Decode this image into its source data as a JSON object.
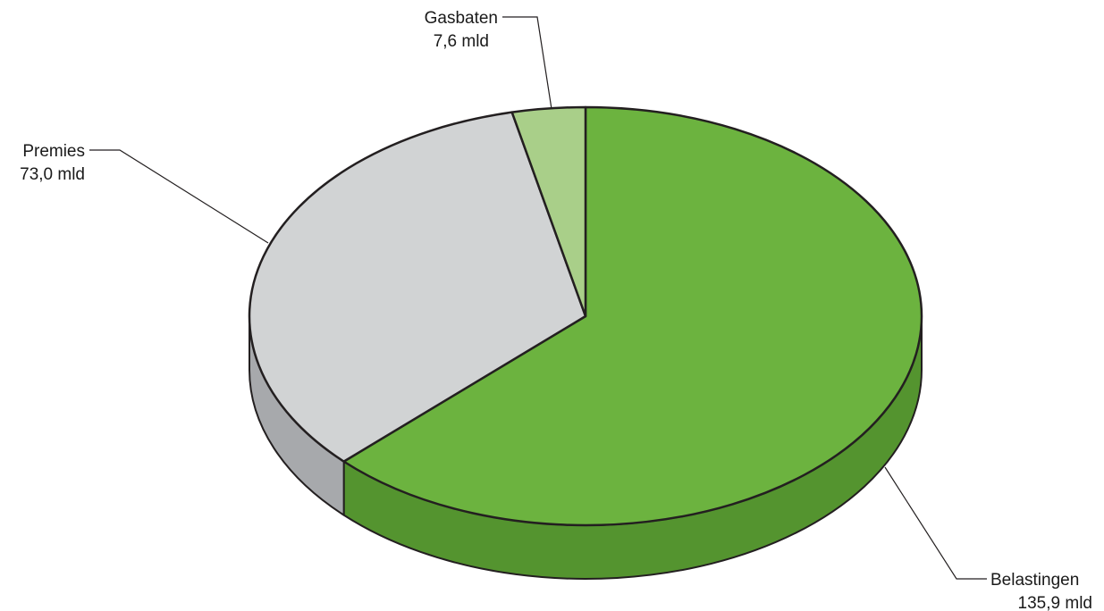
{
  "chart_data": {
    "type": "pie",
    "style": "3d-tilted",
    "categories": [
      "Belastingen",
      "Premies",
      "Gasbaten"
    ],
    "values": [
      135.9,
      73.0,
      7.6
    ],
    "value_labels": [
      "135,9 mld",
      "73,0 mld",
      "7,6 mld"
    ],
    "colors": {
      "Belastingen": {
        "top": "#6cb33f",
        "side": "#54942f"
      },
      "Premies": {
        "top": "#d1d3d4",
        "side": "#a7a9ac"
      },
      "Gasbaten": {
        "top": "#a9cf89",
        "side": "#8fb871"
      }
    },
    "start_angle_deg": 90,
    "direction": "clockwise",
    "legend": "none"
  }
}
